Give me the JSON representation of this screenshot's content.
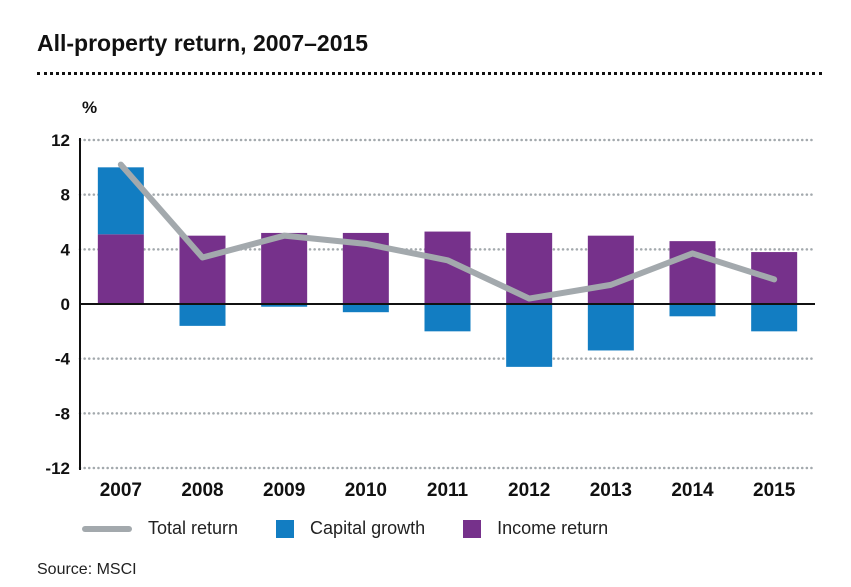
{
  "chart_data": {
    "type": "bar",
    "title": "All-property return, 2007–2015",
    "ylabel": "%",
    "ylim": [
      -12,
      12
    ],
    "yticks": [
      12,
      8,
      4,
      0,
      -4,
      -8,
      -12
    ],
    "grid": true,
    "stacked": true,
    "legend_position": "bottom",
    "categories": [
      "2007",
      "2008",
      "2009",
      "2010",
      "2011",
      "2012",
      "2013",
      "2014",
      "2015"
    ],
    "series": [
      {
        "name": "Total return",
        "kind": "line",
        "color": "#a3a9ad",
        "values": [
          10.2,
          3.4,
          5.0,
          4.4,
          3.2,
          0.4,
          1.4,
          3.7,
          1.8
        ]
      },
      {
        "name": "Capital growth",
        "kind": "bar",
        "color": "#127dc2",
        "values": [
          4.9,
          -1.6,
          -0.2,
          -0.6,
          -2.0,
          -4.6,
          -3.4,
          -0.9,
          -2.0
        ]
      },
      {
        "name": "Income return",
        "kind": "bar",
        "color": "#76318b",
        "values": [
          5.1,
          5.0,
          5.2,
          5.2,
          5.3,
          5.2,
          5.0,
          4.6,
          3.8
        ]
      }
    ],
    "source": "Source: MSCI"
  }
}
